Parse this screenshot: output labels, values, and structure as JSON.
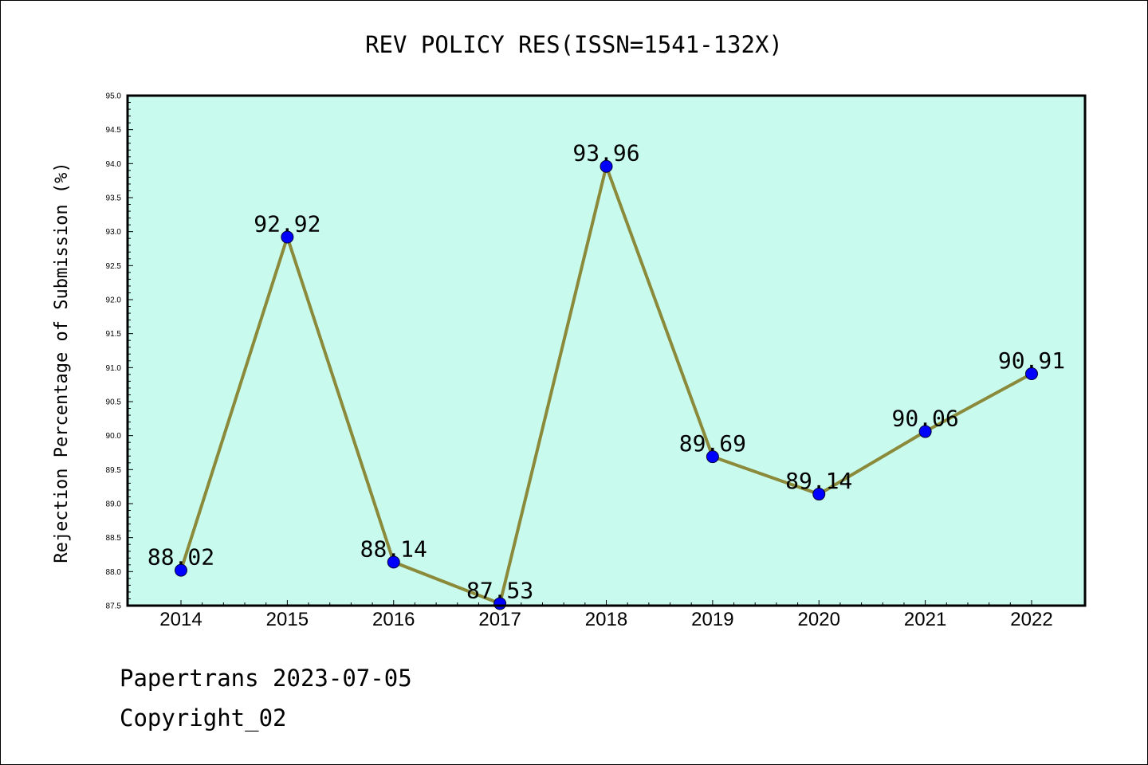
{
  "chart_data": {
    "type": "line",
    "title": "REV POLICY RES(ISSN=1541-132X)",
    "xlabel": "",
    "ylabel": "Rejection Percentage of Submission (%)",
    "categories": [
      "2014",
      "2015",
      "2016",
      "2017",
      "2018",
      "2019",
      "2020",
      "2021",
      "2022"
    ],
    "series": [
      {
        "values": [
          88.02,
          92.92,
          88.14,
          87.53,
          93.96,
          89.69,
          89.14,
          90.06,
          90.91
        ],
        "labels": [
          "88.02",
          "92.92",
          "88.14",
          "87.53",
          "93.96",
          "89.69",
          "89.14",
          "90.06",
          "90.91"
        ]
      }
    ],
    "ylim": [
      87.5,
      95.0
    ],
    "yticks": [
      "87.5",
      "88.0",
      "88.5",
      "89.0",
      "89.5",
      "90.0",
      "90.5",
      "91.0",
      "91.5",
      "92.0",
      "92.5",
      "93.0",
      "93.5",
      "94.0",
      "94.5",
      "95.0"
    ],
    "grid": false,
    "colors": {
      "plot_background": "#c8fbee",
      "line": "#8b8a3a",
      "marker": "#0000ff"
    }
  },
  "footer": {
    "line1": "Papertrans 2023-07-05",
    "line2": "Copyright_02"
  }
}
